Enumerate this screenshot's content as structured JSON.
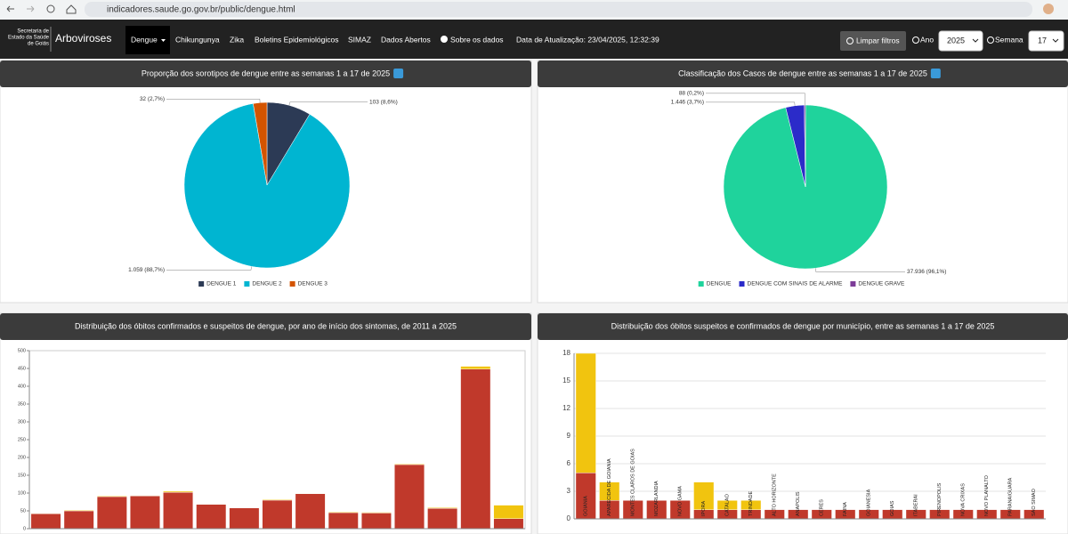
{
  "browser": {
    "url": "indicadores.saude.go.gov.br/public/dengue.html"
  },
  "nav": {
    "logo": [
      "Secretaria de",
      "Estado da Saúde",
      "de Goiás"
    ],
    "brand": "Arboviroses",
    "items": [
      "Dengue",
      "Chikungunya",
      "Zika",
      "Boletins Epidemiológicos",
      "SIMAZ",
      "Dados Abertos",
      "Sobre os dados"
    ],
    "updated": "Data de Atualização: 23/04/2025, 12:32:39",
    "clear": "Limpar filtros",
    "year_label": "Ano",
    "year": "2025",
    "week_label": "Semana",
    "week": "17"
  },
  "chart_data": [
    {
      "type": "pie",
      "title": "Proporção dos sorotipos de dengue entre as semanas 1 a 17 de 2025",
      "categories": [
        "DENGUE 1",
        "DENGUE 2",
        "DENGUE 3"
      ],
      "values": [
        103,
        1059,
        32
      ],
      "value_labels": [
        "103 (8,6%)",
        "1.059 (88,7%)",
        "32 (2,7%)"
      ],
      "colors": [
        "#2c3a55",
        "#00b5d1",
        "#d35400"
      ]
    },
    {
      "type": "pie",
      "title": "Classificação dos Casos de dengue entre as semanas 1 a 17 de 2025",
      "categories": [
        "DENGUE",
        "DENGUE COM SINAIS DE ALARME",
        "DENGUE GRAVE"
      ],
      "values": [
        37936,
        1446,
        88
      ],
      "value_labels": [
        "37.936 (96,1%)",
        "1.446 (3,7%)",
        "88 (0,2%)"
      ],
      "colors": [
        "#1fd39c",
        "#2b2bc9",
        "#7d3c98"
      ]
    },
    {
      "type": "bar",
      "stacked": true,
      "title": "Distribuição dos óbitos confirmados e suspeitos de dengue, por ano de início dos sintomas, de 2011 a 2025",
      "categories": [
        null,
        null,
        null,
        null,
        null,
        null,
        null,
        null,
        null,
        null,
        null,
        null,
        null,
        null,
        null
      ],
      "series": [
        {
          "color": "#c0392b",
          "values": [
            42,
            50,
            90,
            92,
            102,
            68,
            58,
            80,
            98,
            45,
            44,
            180,
            57,
            448,
            28
          ]
        },
        {
          "color": "#f1c40f",
          "values": [
            1,
            2,
            2,
            1,
            3,
            1,
            1,
            2,
            1,
            2,
            2,
            2,
            2,
            8,
            38
          ]
        }
      ],
      "ylim": [
        0,
        500
      ],
      "yticks": [
        0,
        50,
        100,
        150,
        200,
        250,
        300,
        350,
        400,
        450,
        500
      ],
      "grid": false
    },
    {
      "type": "bar",
      "stacked": true,
      "title": "Distribuição dos óbitos suspeitos e confirmados de dengue por município, entre as semanas 1 a 17 de 2025",
      "categories": [
        "GOIANIA",
        "APARECIDA DE GOIANIA",
        "MONTES CLAROS DE GOIAS",
        "MOZARLANDIA",
        "NOVO GAMA",
        "IPORA",
        "CATALAO",
        "TRINDADE",
        "ALTO HORIZONTE",
        "ANAPOLIS",
        "CERES",
        "FAINA",
        "GOIANESIA",
        "GOIAS",
        "ITABERAI",
        "PIRENOPOLIS",
        "NOVA CRIXAS",
        "NOVO PLANALTO",
        "PARANAIGUARA",
        "SAO SIMAO"
      ],
      "series": [
        {
          "color": "#c0392b",
          "values": [
            5,
            2,
            2,
            2,
            2,
            1,
            1,
            1,
            1,
            1,
            1,
            1,
            1,
            1,
            1,
            1,
            1,
            1,
            1,
            1
          ]
        },
        {
          "color": "#f1c40f",
          "values": [
            13,
            2,
            0,
            0,
            0,
            3,
            1,
            1,
            0,
            0,
            0,
            0,
            0,
            0,
            0,
            0,
            0,
            0,
            0,
            0
          ]
        }
      ],
      "ylim": [
        0,
        18
      ],
      "yticks": [
        0,
        3,
        6,
        9,
        12,
        15,
        18
      ],
      "grid": true
    }
  ]
}
